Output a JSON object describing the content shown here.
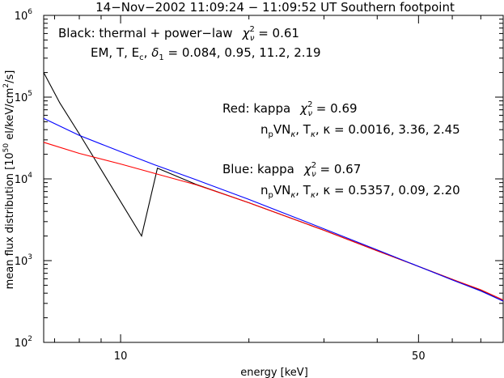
{
  "chart_data": {
    "type": "line",
    "title": "14−Nov−2002 11:09:24 − 11:09:52 UT    Southern footpoint",
    "xlabel": "energy [keV]",
    "ylabel_parts": {
      "prefix": "mean flux distribution [10",
      "exp": "50",
      "mid": " el/keV/cm",
      "exp2": "2",
      "suffix": "/s]"
    },
    "x_scale": "log",
    "y_scale": "log",
    "xlim": [
      6.6,
      79
    ],
    "ylim": [
      100,
      1000000
    ],
    "x_ticks": [
      {
        "value": 10,
        "label": "10"
      },
      {
        "value": 50,
        "label": "50"
      }
    ],
    "y_ticks": [
      {
        "value": 100,
        "base": "10",
        "exp": "2"
      },
      {
        "value": 1000,
        "base": "10",
        "exp": "3"
      },
      {
        "value": 10000,
        "base": "10",
        "exp": "4"
      },
      {
        "value": 100000,
        "base": "10",
        "exp": "5"
      },
      {
        "value": 1000000,
        "base": "10",
        "exp": "6"
      }
    ],
    "annotations": {
      "black_line1": {
        "text": "Black: thermal + power−law",
        "chi_main": "χ",
        "chi_sup": "2",
        "chi_sub": "ν",
        "value": " = 0.61"
      },
      "black_line2": {
        "p1": "EM, T, E",
        "p1_sub": "c",
        "p2": ", ",
        "delta": "δ",
        "delta_sub": "1",
        "value": " = 0.084, 0.95, 11.2, 2.19"
      },
      "red_line1": {
        "text": "Red: kappa",
        "chi_main": "χ",
        "chi_sup": "2",
        "chi_sub": "ν",
        "value": " = 0.69"
      },
      "red_line2": {
        "n": "n",
        "n_sub": "p",
        "vn": "VN",
        "vn_sub": "κ",
        "t": ", T",
        "t_sub": "κ",
        "k": ", κ",
        "value": " = 0.0016, 3.36, 2.45"
      },
      "blue_line1": {
        "text": "Blue: kappa",
        "chi_main": "χ",
        "chi_sup": "2",
        "chi_sub": "ν",
        "value": " = 0.67"
      },
      "blue_line2": {
        "n": "n",
        "n_sub": "p",
        "vn": "VN",
        "vn_sub": "κ",
        "t": ", T",
        "t_sub": "κ",
        "k": ", κ",
        "value": " = 0.5357, 0.09, 2.20"
      }
    },
    "series": [
      {
        "color": "#000000",
        "points": [
          [
            6.6,
            200000
          ],
          [
            7.2,
            85000
          ],
          [
            8.1,
            32000
          ],
          [
            11.2,
            2000
          ],
          [
            12.2,
            13500
          ],
          [
            15,
            8600
          ],
          [
            20,
            5100
          ],
          [
            30,
            2350
          ],
          [
            40,
            1320
          ],
          [
            50,
            850
          ],
          [
            60,
            590
          ],
          [
            70,
            430
          ],
          [
            79,
            320
          ]
        ]
      },
      {
        "color": "#ff0000",
        "points": [
          [
            6.6,
            28000
          ],
          [
            8,
            20500
          ],
          [
            10,
            15200
          ],
          [
            12,
            11700
          ],
          [
            15,
            8500
          ],
          [
            20,
            5100
          ],
          [
            30,
            2350
          ],
          [
            40,
            1320
          ],
          [
            50,
            850
          ],
          [
            60,
            590
          ],
          [
            70,
            440
          ],
          [
            79,
            330
          ]
        ]
      },
      {
        "color": "#0000ff",
        "points": [
          [
            6.6,
            55000
          ],
          [
            8,
            34000
          ],
          [
            10,
            21500
          ],
          [
            12,
            14900
          ],
          [
            15,
            9800
          ],
          [
            20,
            5600
          ],
          [
            30,
            2450
          ],
          [
            40,
            1350
          ],
          [
            50,
            850
          ],
          [
            60,
            580
          ],
          [
            70,
            425
          ],
          [
            79,
            320
          ]
        ]
      }
    ]
  }
}
